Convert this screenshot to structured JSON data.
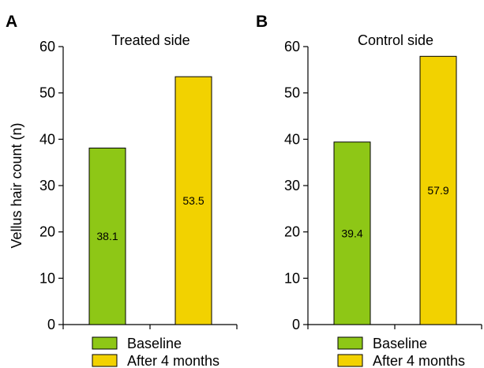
{
  "chart_data": [
    {
      "type": "bar",
      "panel_label": "A",
      "title": "Treated side",
      "ylabel": "Vellus hair count (n)",
      "xlabel": "",
      "ylim": [
        0,
        60
      ],
      "yticks": [
        0,
        10,
        20,
        30,
        40,
        50,
        60
      ],
      "categories": [
        "Baseline",
        "After 4 months"
      ],
      "values": [
        38.1,
        53.5
      ],
      "data_labels": [
        "38.1",
        "53.5"
      ],
      "colors": [
        "#8ec716",
        "#f2d200"
      ],
      "legend": [
        "Baseline",
        "After 4 months"
      ],
      "legend_position": "bottom"
    },
    {
      "type": "bar",
      "panel_label": "B",
      "title": "Control side",
      "ylabel": "",
      "xlabel": "",
      "ylim": [
        0,
        60
      ],
      "yticks": [
        0,
        10,
        20,
        30,
        40,
        50,
        60
      ],
      "categories": [
        "Baseline",
        "After 4 months"
      ],
      "values": [
        39.4,
        57.9
      ],
      "data_labels": [
        "39.4",
        "57.9"
      ],
      "colors": [
        "#8ec716",
        "#f2d200"
      ],
      "legend": [
        "Baseline",
        "After 4 months"
      ],
      "legend_position": "bottom"
    }
  ]
}
